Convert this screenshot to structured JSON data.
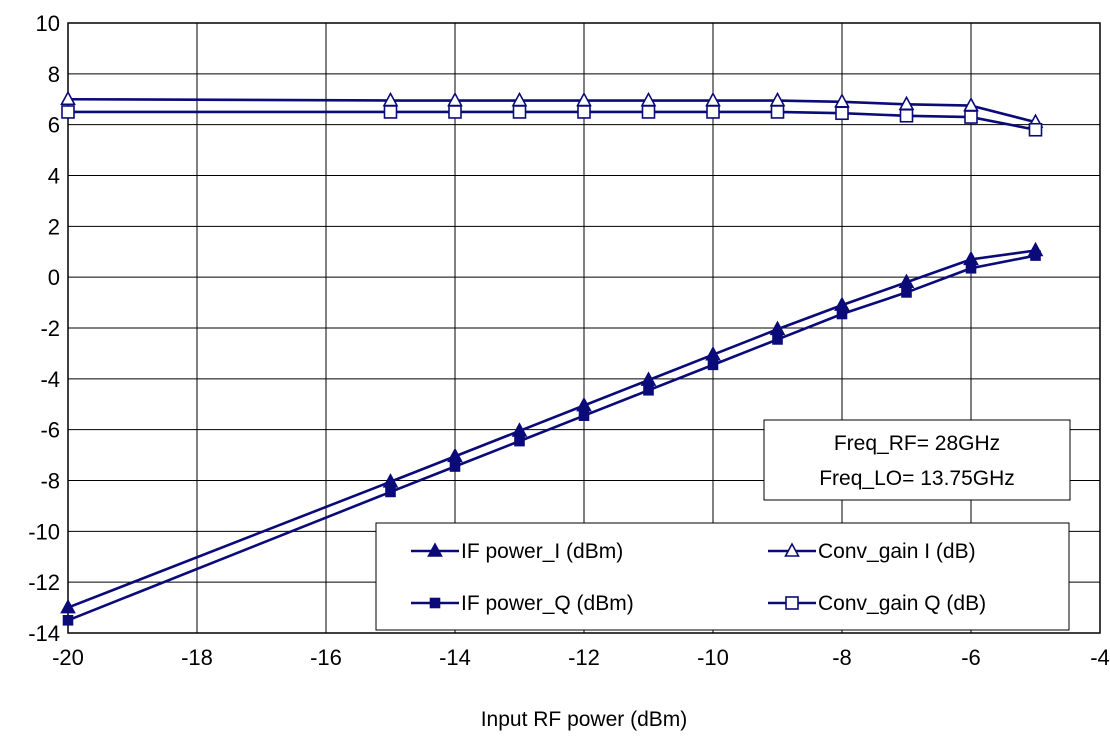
{
  "chart_data": {
    "type": "line",
    "xlabel": "Input RF power (dBm)",
    "ylabel": "",
    "xlim": [
      -20,
      -4
    ],
    "ylim": [
      -14,
      10
    ],
    "x_ticks": [
      "-20",
      "-18",
      "-16",
      "-14",
      "-12",
      "-10",
      "-8",
      "-6",
      "-4"
    ],
    "y_ticks": [
      "10",
      "8",
      "6",
      "4",
      "2",
      "0",
      "-2",
      "-4",
      "-6",
      "-8",
      "-10",
      "-12",
      "-14"
    ],
    "grid": true,
    "annotation": [
      "Freq_RF= 28GHz",
      "Freq_LO= 13.75GHz"
    ],
    "legend_position": "bottom-right",
    "x": [
      -20,
      -15,
      -14,
      -13,
      -12,
      -11,
      -10,
      -9,
      -8,
      -7,
      -6,
      -5
    ],
    "series": [
      {
        "name": "IF power_I (dBm)",
        "marker": "filled-triangle",
        "values": [
          -13,
          -8.05,
          -7.05,
          -6.05,
          -5.05,
          -4.05,
          -3.05,
          -2.05,
          -1.1,
          -0.2,
          0.7,
          1.05
        ]
      },
      {
        "name": "IF power_Q (dBm)",
        "marker": "filled-square",
        "values": [
          -13.5,
          -8.45,
          -7.45,
          -6.45,
          -5.45,
          -4.45,
          -3.45,
          -2.45,
          -1.45,
          -0.6,
          0.35,
          0.85
        ]
      },
      {
        "name": "Conv_gain I (dB)",
        "marker": "open-triangle",
        "values": [
          7.0,
          6.95,
          6.95,
          6.95,
          6.95,
          6.95,
          6.95,
          6.95,
          6.9,
          6.8,
          6.75,
          6.1
        ]
      },
      {
        "name": "Conv_gain Q (dB)",
        "marker": "open-square",
        "values": [
          6.5,
          6.5,
          6.5,
          6.5,
          6.5,
          6.5,
          6.5,
          6.5,
          6.45,
          6.35,
          6.3,
          5.8
        ]
      }
    ],
    "colors": {
      "series": "#0a0a78",
      "grid": "#000000",
      "background": "#ffffff"
    }
  }
}
